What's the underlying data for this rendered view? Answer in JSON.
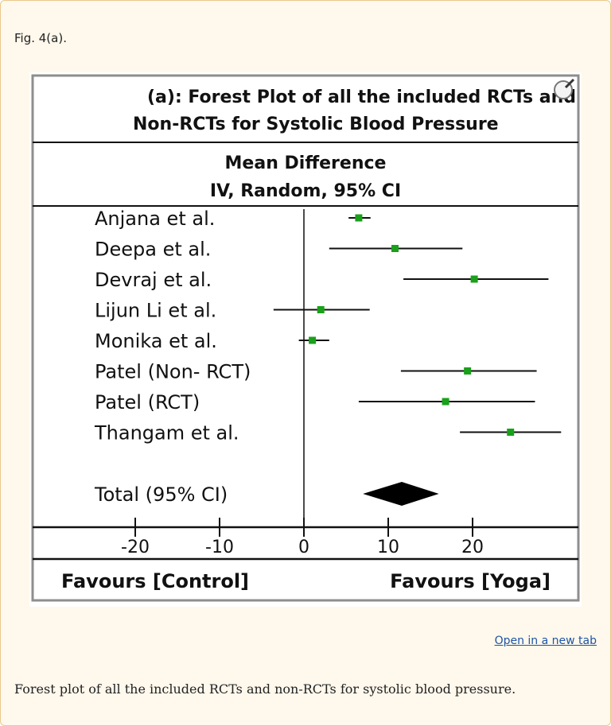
{
  "figure": {
    "label": "Fig. 4(a).",
    "open_link": "Open in a new tab",
    "caption": "Forest plot of all the included RCTs and non-RCTs for systolic blood pressure.",
    "zoom_icon": "magnifier-icon"
  },
  "chart_data": {
    "type": "forest",
    "title_lines": [
      "(a): Forest Plot of all the included RCTs and",
      "Non-RCTs for Systolic Blood Pressure"
    ],
    "subtitle_lines": [
      "Mean Difference",
      "IV, Random, 95% CI"
    ],
    "xlim": [
      -26,
      30
    ],
    "xticks": [
      -20,
      -10,
      0,
      10,
      20
    ],
    "xtick_labels": [
      "-20",
      "-10",
      "0",
      "10",
      "20"
    ],
    "left_label": "Favours [Control]",
    "right_label": "Favours [Yoga]",
    "marker_color": "#1aa01a",
    "studies": [
      {
        "name": "Anjana et al.",
        "estimate": 6.5,
        "ci": [
          5.3,
          7.9
        ]
      },
      {
        "name": "Deepa et al.",
        "estimate": 10.8,
        "ci": [
          3.0,
          18.8
        ]
      },
      {
        "name": "Devraj et al.",
        "estimate": 20.2,
        "ci": [
          11.8,
          29.0
        ]
      },
      {
        "name": "Lijun Li et al.",
        "estimate": 2.0,
        "ci": [
          -3.6,
          7.8
        ]
      },
      {
        "name": "Monika et al.",
        "estimate": 1.0,
        "ci": [
          -0.6,
          3.0
        ]
      },
      {
        "name": "Patel (Non- RCT)",
        "estimate": 19.4,
        "ci": [
          11.5,
          27.6
        ]
      },
      {
        "name": "Patel (RCT)",
        "estimate": 16.8,
        "ci": [
          6.5,
          27.4
        ]
      },
      {
        "name": "Thangam et al.",
        "estimate": 24.5,
        "ci": [
          18.5,
          30.5
        ]
      }
    ],
    "total": {
      "name": "Total (95% CI)",
      "estimate": 11.6,
      "ci": [
        7.0,
        16.0
      ]
    }
  }
}
